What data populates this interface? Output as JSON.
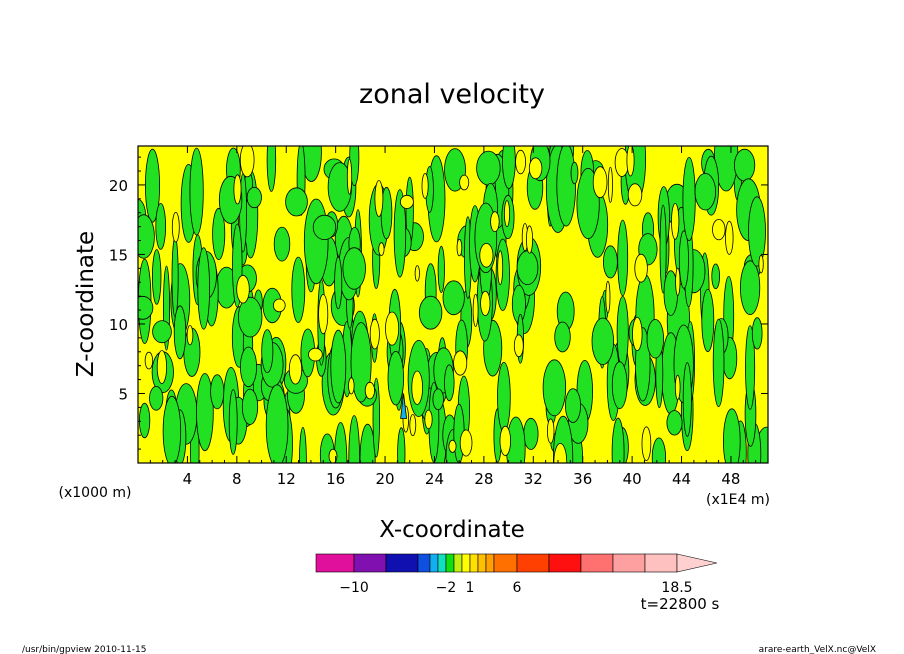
{
  "chart_data": {
    "type": "heatmap",
    "title": "zonal velocity",
    "xlabel": "X-coordinate",
    "ylabel": "Z-coordinate",
    "x_unit_left": "(x1000 m)",
    "x_unit_right": "(x1E4 m)",
    "xlim": [
      0,
      51
    ],
    "ylim": [
      0,
      22.8
    ],
    "xticks": [
      4,
      8,
      12,
      16,
      20,
      24,
      28,
      32,
      36,
      40,
      44,
      48
    ],
    "yticks": [
      5,
      10,
      15,
      20
    ],
    "time_label": "t=22800 s",
    "colorbar": {
      "levels": [
        -12,
        -10,
        -8,
        -6,
        -4,
        -3,
        -2,
        -1,
        0,
        1,
        2,
        3,
        4,
        6,
        8.5,
        11,
        13.5,
        16,
        18.5
      ],
      "colors": [
        "#e0109c",
        "#8010b0",
        "#1010b0",
        "#1050e0",
        "#10b0f0",
        "#10e0c0",
        "#10e010",
        "#c0f010",
        "#ffff00",
        "#ffe000",
        "#ffc000",
        "#ffa000",
        "#ff7000",
        "#ff4000",
        "#ff1010",
        "#ff7070",
        "#ffa0a0",
        "#ffc0c0"
      ],
      "arrow_color": "#ffd0d0",
      "labels": [
        {
          "value": -10,
          "text": "−10"
        },
        {
          "value": -2,
          "text": "−2"
        },
        {
          "value": 1,
          "text": "1"
        },
        {
          "value": 6,
          "text": "6"
        },
        {
          "value": 18.5,
          "text": "18.5"
        }
      ]
    },
    "field_colors": {
      "negative": "#22e022",
      "positive": "#ffff00",
      "line": "#000000"
    }
  },
  "footer": {
    "left": "/usr/bin/gpview   2010-11-15",
    "right": "arare-earth_VelX.nc@VelX"
  }
}
